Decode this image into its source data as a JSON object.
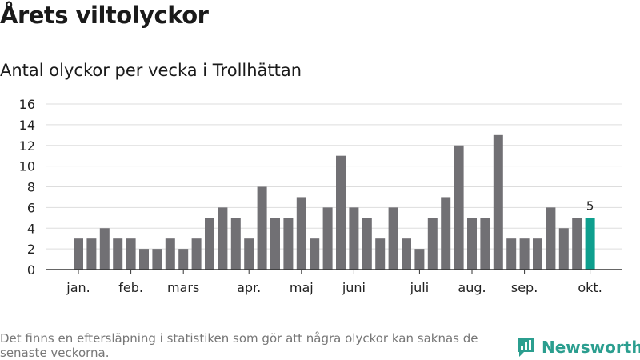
{
  "header": {
    "title": "Årets viltolyckor",
    "subtitle": "Antal olyckor per vecka i Trollhättan"
  },
  "footer": {
    "note": "Det finns en eftersläpning i statistiken som gör att några olyckor kan saknas de senaste veckorna.",
    "brand": "Newsworthy"
  },
  "colors": {
    "bar": "#717074",
    "highlight": "#0e9f8e",
    "grid": "#dddddd",
    "axis": "#333333",
    "brand": "#2b9e8f"
  },
  "chart_data": {
    "type": "bar",
    "title": "Antal olyckor per vecka i Trollhättan",
    "xlabel": "",
    "ylabel": "",
    "ylim": [
      0,
      16
    ],
    "yticks": [
      0,
      2,
      4,
      6,
      8,
      10,
      12,
      14,
      16
    ],
    "grid": true,
    "values": [
      3,
      3,
      4,
      3,
      3,
      2,
      2,
      3,
      2,
      3,
      5,
      6,
      5,
      3,
      8,
      5,
      5,
      7,
      3,
      6,
      11,
      6,
      5,
      3,
      6,
      3,
      2,
      5,
      7,
      12,
      5,
      5,
      13,
      3,
      3,
      3,
      6,
      4,
      5,
      5
    ],
    "highlight_index": 39,
    "highlight_label": "5",
    "month_labels": [
      {
        "label": "jan.",
        "week": 1
      },
      {
        "label": "feb.",
        "week": 5
      },
      {
        "label": "mars",
        "week": 9
      },
      {
        "label": "apr.",
        "week": 14
      },
      {
        "label": "maj",
        "week": 18
      },
      {
        "label": "juni",
        "week": 22
      },
      {
        "label": "juli",
        "week": 27
      },
      {
        "label": "aug.",
        "week": 31
      },
      {
        "label": "sep.",
        "week": 35
      },
      {
        "label": "okt.",
        "week": 40
      }
    ]
  }
}
